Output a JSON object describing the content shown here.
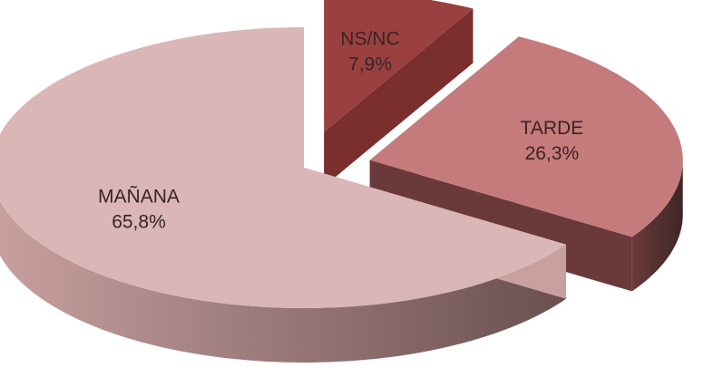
{
  "chart_data": {
    "type": "pie",
    "title": "",
    "categories": [
      "MAÑANA",
      "TARDE",
      "NS/NC"
    ],
    "values": [
      65.8,
      26.3,
      7.9
    ],
    "value_labels": [
      "65,8%",
      "26,3%",
      "7,9%"
    ],
    "unit": "%",
    "exploded": true,
    "three_d": true,
    "legend": "none",
    "colors": {
      "MAÑANA": {
        "top": "#dbb6b6",
        "side_light": "#c9a0a0",
        "side_dark": "#6a5050"
      },
      "TARDE": {
        "top": "#c57b7b",
        "side_light": "#6a3a3a",
        "side_dark": "#3e2626"
      },
      "NS/NC": {
        "top": "#9a4040",
        "side_light": "#7a2e2e",
        "side_dark": "#4a1e1e"
      }
    }
  }
}
